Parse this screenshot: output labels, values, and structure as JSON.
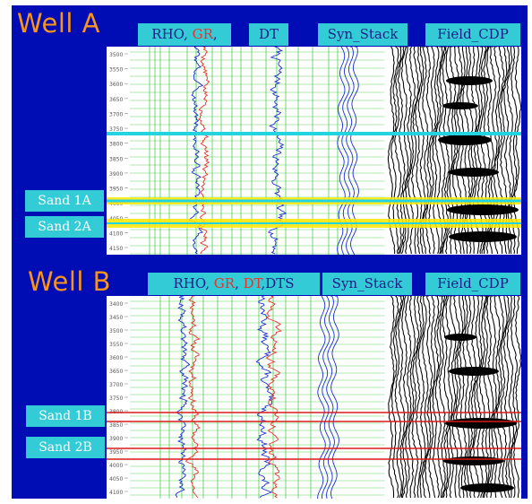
{
  "wells": [
    {
      "title": "Well A",
      "tracks": {
        "t1a": "RHO",
        "t1b": "GR",
        "t2": "DT",
        "t3": "Syn_Stack",
        "t4": "Field_CDP"
      },
      "depth_ticks": [
        "3500",
        "3550",
        "3600",
        "3650",
        "3700",
        "3750",
        "3800",
        "3850",
        "3900",
        "3950",
        "4000",
        "4050",
        "4100",
        "4150"
      ],
      "sands": [
        "Sand 1A",
        "Sand 2A"
      ]
    },
    {
      "title": "Well B",
      "tracks": {
        "t1a": "RHO",
        "t1b": "GR",
        "t2a": "DT",
        "t2b": "DTS",
        "t3": "Syn_Stack",
        "t4": "Field_CDP"
      },
      "depth_ticks": [
        "3400",
        "3450",
        "3500",
        "3550",
        "3600",
        "3650",
        "3700",
        "3750",
        "3800",
        "3850",
        "3900",
        "3950",
        "4000",
        "4050",
        "4100"
      ],
      "sands": [
        "Sand 1B",
        "Sand 2B"
      ]
    }
  ],
  "colors": {
    "background": "#000db4",
    "title": "#f7941d",
    "header_fill": "#33ccd6",
    "header_text": "#1c1c86",
    "gr_curve": "#e8322b",
    "rho_curve": "#1a2bd6",
    "grid": "#37c837",
    "cyan_marker": "#22d3e0",
    "yellow_band": "#ffe600",
    "red_marker": "#d81b1b"
  }
}
